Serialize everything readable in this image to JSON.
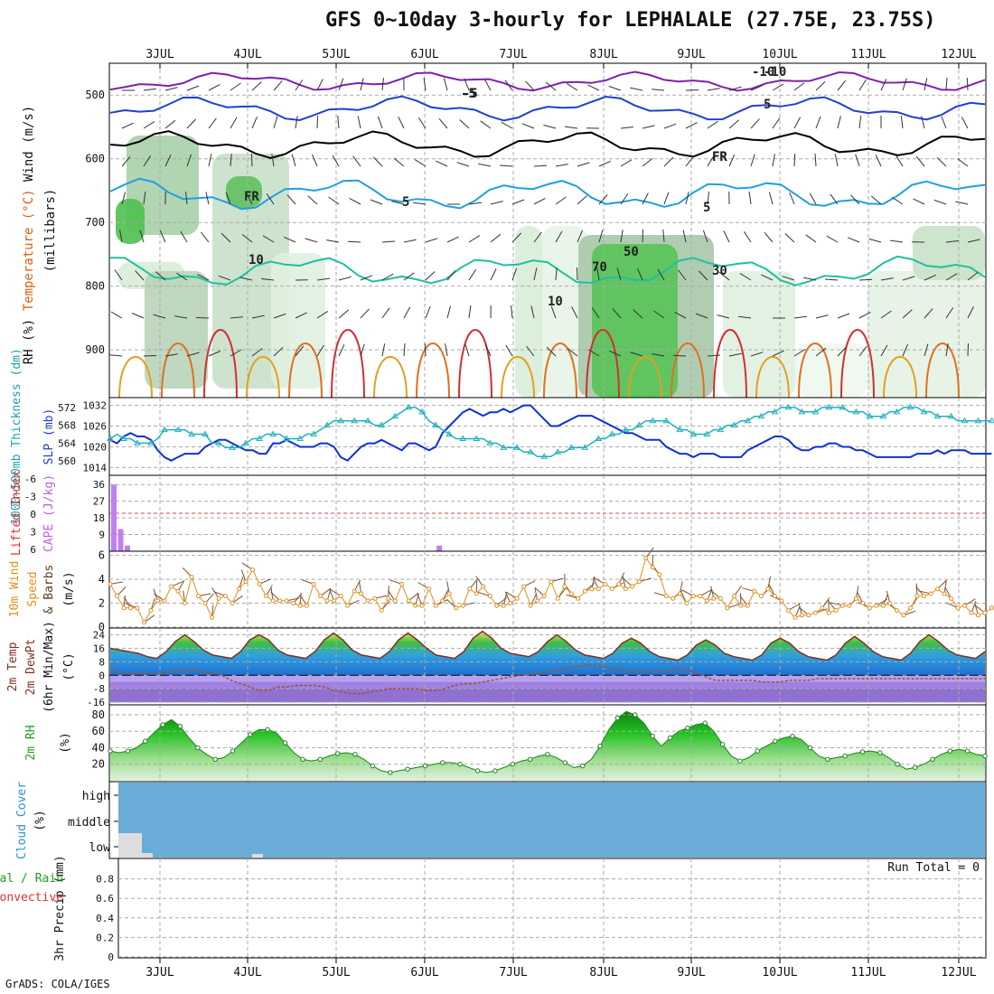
{
  "title": "GFS 0~10day 3-hourly for LEPHALALE (27.75E, 23.75S)",
  "footer": "GrADS: COLA/IGES",
  "run_total_label": "Run Total = 0",
  "chart_data": [
    {
      "id": "upper-air",
      "type": "heatmap",
      "ylabel": [
        "RH (%)",
        "Temperature (°C)",
        "Wind (m/s)"
      ],
      "ylabel2": "(millibars)",
      "ylim": [
        975,
        450
      ],
      "yticks": [
        500,
        600,
        700,
        800,
        900
      ],
      "x_dates": [
        "3JUL",
        "4JUL",
        "5JUL",
        "6JUL",
        "7JUL",
        "8JUL",
        "9JUL",
        "10JUL",
        "11JUL",
        "12JUL"
      ],
      "contour_labels": [
        "-10",
        "-5",
        "FR",
        "5",
        "10",
        "FR",
        "-10",
        "5",
        "FR",
        "5",
        "10",
        "30",
        "70",
        "50",
        "-5"
      ]
    },
    {
      "id": "sfc-pressure",
      "type": "line",
      "ylabel_left": "1000~500mb Thickness (dm)",
      "ylabel_right": "SLP (mb)",
      "left_ticks": [
        560,
        564,
        568,
        572
      ],
      "right_ticks": [
        1014,
        1020,
        1026,
        1032
      ],
      "series": [
        {
          "name": "SLP (mb)",
          "values": [
            1022,
            1021,
            1023,
            1024,
            1023,
            1023,
            1022,
            1019,
            1017,
            1016,
            1017,
            1018,
            1018,
            1018,
            1020,
            1021,
            1022,
            1022,
            1021,
            1020,
            1019,
            1019,
            1018,
            1018,
            1021,
            1021,
            1022,
            1021,
            1020,
            1020,
            1020,
            1021,
            1021,
            1020,
            1017,
            1016,
            1018,
            1020,
            1021,
            1021,
            1022,
            1021,
            1020,
            1019,
            1021,
            1021,
            1020,
            1019,
            1020,
            1024,
            1026,
            1028,
            1030,
            1031,
            1030,
            1029,
            1030,
            1030,
            1031,
            1030,
            1031,
            1032,
            1032,
            1030,
            1028,
            1026,
            1026,
            1027,
            1028,
            1029,
            1029,
            1029,
            1028,
            1027,
            1026,
            1025,
            1024,
            1024,
            1023,
            1022,
            1022,
            1022,
            1020,
            1019,
            1018,
            1018,
            1017,
            1018,
            1018,
            1018,
            1017,
            1017,
            1017,
            1017,
            1019,
            1020,
            1021,
            1022,
            1023,
            1023,
            1022,
            1020,
            1019,
            1019,
            1020,
            1020,
            1021,
            1021,
            1020,
            1020,
            1019,
            1019,
            1018,
            1017,
            1017,
            1017,
            1017,
            1017,
            1017,
            1018,
            1018,
            1018,
            1019,
            1018,
            1019,
            1019,
            1019,
            1018,
            1018,
            1018,
            1018
          ]
        },
        {
          "name": "1000~500mb Thickness (dm)",
          "values": [
            565,
            566,
            565,
            565,
            564,
            564,
            564,
            565,
            567,
            567,
            567,
            567,
            566,
            566,
            566,
            564,
            564,
            563,
            563,
            563,
            564,
            565,
            565,
            566,
            566,
            566,
            565,
            565,
            565,
            566,
            566,
            567,
            568,
            569,
            569,
            569,
            569,
            569,
            569,
            568,
            568,
            569,
            570,
            571,
            572,
            572,
            571,
            569,
            568,
            567,
            566,
            565,
            565,
            565,
            565,
            565,
            564,
            564,
            563,
            563,
            563,
            562,
            562,
            561,
            561,
            561,
            562,
            562,
            563,
            563,
            563,
            564,
            565,
            565,
            566,
            566,
            567,
            567,
            568,
            569,
            569,
            569,
            569,
            568,
            567,
            567,
            566,
            566,
            566,
            567,
            567,
            568,
            568,
            569,
            569,
            570,
            570,
            571,
            571,
            572,
            572,
            572,
            571,
            571,
            571,
            572,
            572,
            572,
            572,
            571,
            571,
            571,
            570,
            570,
            570,
            571,
            571,
            572,
            572,
            572,
            571,
            571,
            570,
            570,
            570,
            569,
            569,
            569,
            569,
            569,
            569
          ]
        }
      ]
    },
    {
      "id": "cape-li",
      "type": "bar",
      "ylabel_left": "Lifted Index",
      "ylabel_right": "CAPE (J/kg)",
      "left_ticks": [
        "-6",
        "-3",
        "0",
        "3",
        "6"
      ],
      "right_ticks": [
        "36",
        "27",
        "18",
        "9"
      ],
      "cape_bars": [
        {
          "x": 0,
          "value": 36
        },
        {
          "x": 1,
          "value": 12
        },
        {
          "x": 2,
          "value": 3
        },
        {
          "x": 48,
          "value": 3
        }
      ]
    },
    {
      "id": "wind10m",
      "type": "line",
      "ylabel": [
        "10m Wind",
        "Speed",
        "& Barbs",
        "(m/s)"
      ],
      "yticks": [
        0,
        2,
        4,
        6
      ],
      "ylim": [
        0,
        6
      ],
      "series": [
        {
          "name": "10m wind speed",
          "values": [
            3.6,
            2.6,
            1.6,
            1.6,
            1.6,
            0.4,
            1.4,
            2.2,
            2.2,
            3.4,
            3.0,
            2.0,
            4.2,
            2.6,
            2.0,
            0.8,
            2.4,
            2.6,
            2.0,
            3.2,
            3.8,
            4.8,
            3.6,
            2.6,
            2.2,
            2.2,
            2.2,
            2.0,
            1.8,
            1.8,
            3.6,
            2.6,
            2.2,
            2.2,
            2.6,
            1.8,
            3.0,
            2.8,
            2.2,
            2.4,
            1.4,
            2.4,
            2.2,
            3.6,
            2.2,
            1.8,
            1.8,
            3.2,
            1.8,
            2.2,
            2.8,
            1.6,
            1.8,
            3.2,
            2.8,
            3.4,
            2.6,
            1.8,
            1.8,
            2.0,
            2.4,
            3.4,
            1.8,
            2.2,
            2.6,
            3.8,
            2.4,
            3.4,
            2.8,
            2.4,
            3.0,
            3.2,
            3.2,
            3.6,
            3.2,
            3.6,
            3.2,
            3.4,
            3.8,
            5.8,
            5.0,
            4.4,
            2.6,
            2.4,
            2.8,
            2.0,
            2.6,
            2.6,
            2.2,
            2.4,
            2.4,
            1.6,
            2.6,
            1.8,
            1.8,
            3.0,
            2.6,
            3.2,
            2.6,
            2.2,
            1.4,
            0.8,
            1.0,
            1.0,
            1.2,
            1.6,
            1.2,
            1.4,
            1.8,
            1.8,
            2.4,
            2.0,
            1.6,
            1.8,
            1.8,
            2.0,
            1.4,
            1.0,
            1.6,
            2.6,
            2.6,
            2.8,
            3.2,
            2.8,
            2.4,
            1.6,
            1.8,
            1.2,
            1.0,
            1.2,
            1.6
          ]
        }
      ]
    },
    {
      "id": "temp2m",
      "type": "area",
      "ylabel": [
        "2m Temp",
        "2m DewPt",
        "(6hr Min/Max)",
        "(°C)"
      ],
      "yticks": [
        -16,
        -8,
        0,
        8,
        16,
        24
      ],
      "ylim": [
        -17,
        28
      ],
      "series": [
        {
          "name": "2m Temp",
          "values": [
            16,
            15,
            14,
            13,
            11,
            10,
            14,
            20,
            24,
            20,
            15,
            12,
            11,
            10,
            14,
            21,
            24,
            21,
            15,
            12,
            11,
            10,
            14,
            21,
            25,
            21,
            15,
            12,
            11,
            10,
            14,
            21,
            25,
            21,
            16,
            12,
            11,
            10,
            14,
            22,
            26,
            22,
            16,
            13,
            12,
            11,
            14,
            20,
            24,
            20,
            15,
            12,
            11,
            10,
            13,
            19,
            22,
            19,
            14,
            11,
            10,
            9,
            12,
            18,
            21,
            18,
            13,
            11,
            10,
            9,
            12,
            19,
            22,
            19,
            14,
            11,
            10,
            9,
            12,
            19,
            23,
            19,
            14,
            11,
            10,
            9,
            13,
            20,
            24,
            20,
            15,
            12,
            11,
            10,
            14
          ]
        },
        {
          "name": "2m DewPt",
          "values": [
            2,
            2,
            1,
            1,
            1,
            1,
            2,
            2,
            3,
            3,
            2,
            1,
            0,
            -3,
            -5,
            -7,
            -9,
            -9,
            -7,
            -7,
            -6,
            -6,
            -6,
            -7,
            -9,
            -10,
            -11,
            -11,
            -10,
            -9,
            -8,
            -8,
            -8,
            -8,
            -9,
            -9,
            -8,
            -6,
            -5,
            -5,
            -4,
            -3,
            -2,
            -1,
            0,
            0,
            1,
            2,
            3,
            4,
            5,
            6,
            6,
            5,
            4,
            3,
            2,
            2,
            2,
            3,
            3,
            4,
            3,
            1,
            -1,
            -3,
            -3,
            -3,
            -3,
            -3,
            -4,
            -4,
            -4,
            -3,
            -3,
            -3,
            -2,
            -2,
            -2,
            -2,
            -2,
            -2,
            -2,
            -2,
            -2,
            -2,
            -2,
            -2,
            -2,
            -2,
            -2,
            -2,
            -2,
            -2,
            -2
          ]
        }
      ]
    },
    {
      "id": "rh2m",
      "type": "area",
      "ylabel": [
        "2m RH",
        "(%)"
      ],
      "yticks": [
        20,
        40,
        60,
        80
      ],
      "ylim": [
        0,
        92
      ],
      "series": [
        {
          "name": "2m RH",
          "values": [
            36,
            34,
            36,
            40,
            48,
            58,
            68,
            74,
            66,
            52,
            40,
            32,
            26,
            28,
            36,
            46,
            56,
            62,
            62,
            58,
            46,
            34,
            26,
            24,
            26,
            30,
            33,
            34,
            32,
            26,
            18,
            12,
            10,
            12,
            14,
            16,
            18,
            20,
            22,
            22,
            20,
            16,
            12,
            10,
            12,
            16,
            20,
            24,
            26,
            30,
            32,
            28,
            22,
            16,
            18,
            26,
            42,
            62,
            76,
            84,
            80,
            70,
            54,
            42,
            52,
            60,
            64,
            68,
            70,
            60,
            44,
            30,
            24,
            28,
            36,
            42,
            48,
            52,
            54,
            50,
            40,
            30,
            26,
            28,
            30,
            33,
            35,
            36,
            34,
            28,
            20,
            14,
            16,
            20,
            26,
            32,
            36,
            38,
            36,
            32,
            30
          ]
        }
      ]
    },
    {
      "id": "cloud",
      "type": "bar",
      "ylabel": [
        "Cloud Cover",
        "(%)"
      ],
      "yticks": [
        "high",
        "middle",
        "low"
      ]
    },
    {
      "id": "precip",
      "type": "bar",
      "ylabel": [
        "3hr Precip (mm)"
      ],
      "ylabel_left": [
        "Total / Rain",
        "Convective"
      ],
      "yticks": [
        "0",
        "0.2",
        "0.4",
        "0.6",
        "0.8"
      ],
      "ylim": [
        0,
        1
      ],
      "x_dates": [
        "3JUL",
        "4JUL",
        "5JUL",
        "6JUL",
        "7JUL",
        "8JUL",
        "9JUL",
        "10JUL",
        "11JUL",
        "12JUL"
      ]
    }
  ]
}
